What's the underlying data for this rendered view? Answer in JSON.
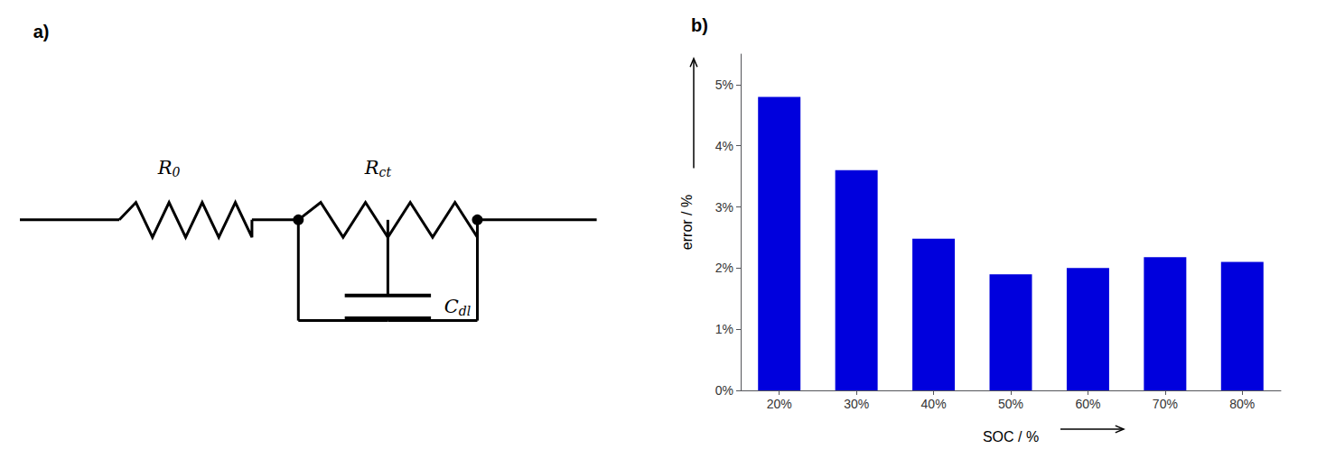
{
  "chart_data": {
    "type": "bar",
    "categories": [
      "20%",
      "30%",
      "40%",
      "50%",
      "60%",
      "70%",
      "80%"
    ],
    "values": [
      4.8,
      3.6,
      2.48,
      1.9,
      2.0,
      2.18,
      2.1
    ],
    "color": "#0000DD",
    "xlabel": "SOC / %",
    "ylabel": "error / %",
    "ylim": [
      0,
      5.5
    ],
    "yticks": [
      {
        "value": 0,
        "label": "0%"
      },
      {
        "value": 1,
        "label": "1%"
      },
      {
        "value": 2,
        "label": "2%"
      },
      {
        "value": 3,
        "label": "3%"
      },
      {
        "value": 4,
        "label": "4%"
      },
      {
        "value": 5,
        "label": "5%"
      }
    ],
    "grid": false,
    "annotations": [
      "a)",
      "b)",
      "R0",
      "Rct",
      "Cdl"
    ]
  }
}
